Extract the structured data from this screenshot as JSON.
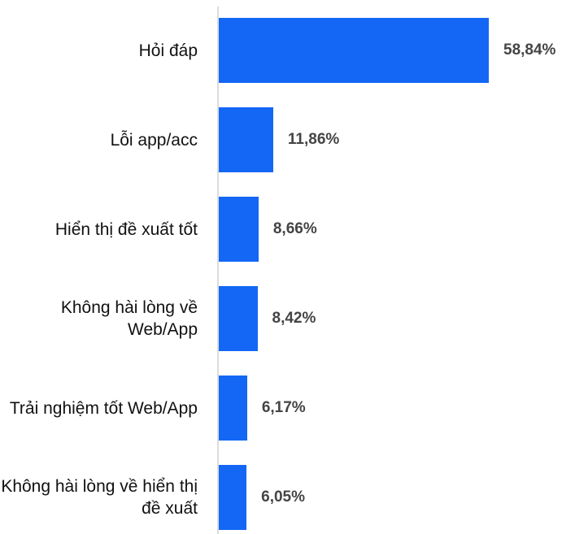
{
  "chart_data": {
    "type": "barh",
    "categories": [
      "Hỏi đáp",
      "Lỗi app/acc",
      "Hiển thị đề xuất tốt",
      "Không hài lòng về Web/App",
      "Trải nghiệm tốt Web/App",
      "Không hài lòng về hiển thị đề xuất"
    ],
    "values": [
      58.84,
      11.86,
      8.66,
      8.42,
      6.17,
      6.05
    ],
    "value_labels": [
      "58,84%",
      "11,86%",
      "8,66%",
      "8,42%",
      "6,17%",
      "6,05%"
    ],
    "color": "#1467f5"
  }
}
